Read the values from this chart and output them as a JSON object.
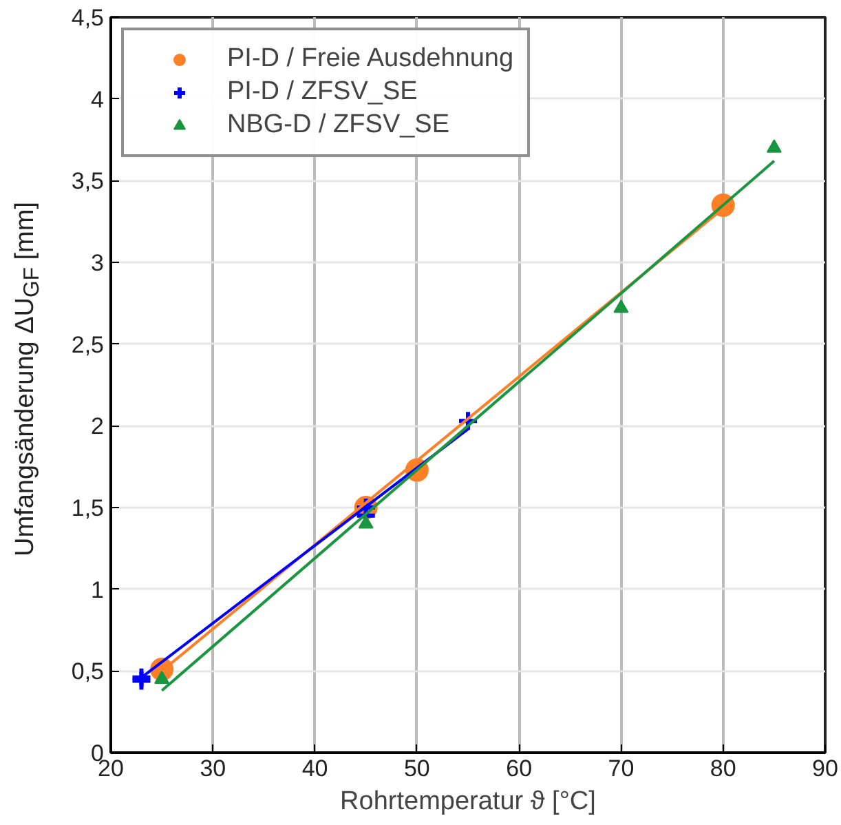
{
  "chart_data": {
    "type": "scatter",
    "xlabel": "Rohrtemperatur ϑ [°C]",
    "ylabel": "Umfangsänderung ΔU$_{GF}$ [mm]",
    "xlim": [
      20,
      90
    ],
    "ylim": [
      0,
      4.5
    ],
    "xticks": [
      20,
      30,
      40,
      50,
      60,
      70,
      80,
      90
    ],
    "yticks": [
      0,
      {
        "value": 0.5,
        "label": "0,5"
      },
      1,
      {
        "value": 1.5,
        "label": "1,5"
      },
      2,
      {
        "value": 2.5,
        "label": "2,5"
      },
      3,
      {
        "value": 3.5,
        "label": "3,5"
      },
      4,
      {
        "value": 4.5,
        "label": "4,5"
      }
    ],
    "grid": true,
    "legend": "top left",
    "series": [
      {
        "name": "PI-D / Freie Ausdehnung",
        "marker": "circle",
        "color": "#ff7f27",
        "x": [
          25,
          45,
          50,
          80
        ],
        "values": [
          0.51,
          1.5,
          1.73,
          3.35
        ]
      },
      {
        "name": "PI-D / ZFSV_SE",
        "marker": "cross",
        "color": "#0000ff",
        "x": [
          23,
          23,
          45,
          45,
          55
        ],
        "values": [
          0.46,
          0.44,
          1.5,
          1.45,
          2.03
        ]
      },
      {
        "name": "NBG-D / ZFSV_SE",
        "marker": "triangle",
        "color": "#1a9641",
        "x": [
          25,
          45,
          70,
          85
        ],
        "values": [
          0.45,
          1.4,
          2.72,
          3.7
        ]
      },
      {
        "type": "line",
        "marker": "none",
        "color": "#ff7f27",
        "x": [
          25,
          80
        ],
        "values": [
          0.5,
          3.33
        ]
      },
      {
        "type": "line",
        "marker": "none",
        "color": "#0000ff",
        "x": [
          23,
          55
        ],
        "values": [
          0.46,
          1.98
        ]
      },
      {
        "type": "line",
        "marker": "none",
        "color": "#1a9641",
        "x": [
          25,
          85
        ],
        "values": [
          0.38,
          3.62
        ]
      }
    ]
  }
}
